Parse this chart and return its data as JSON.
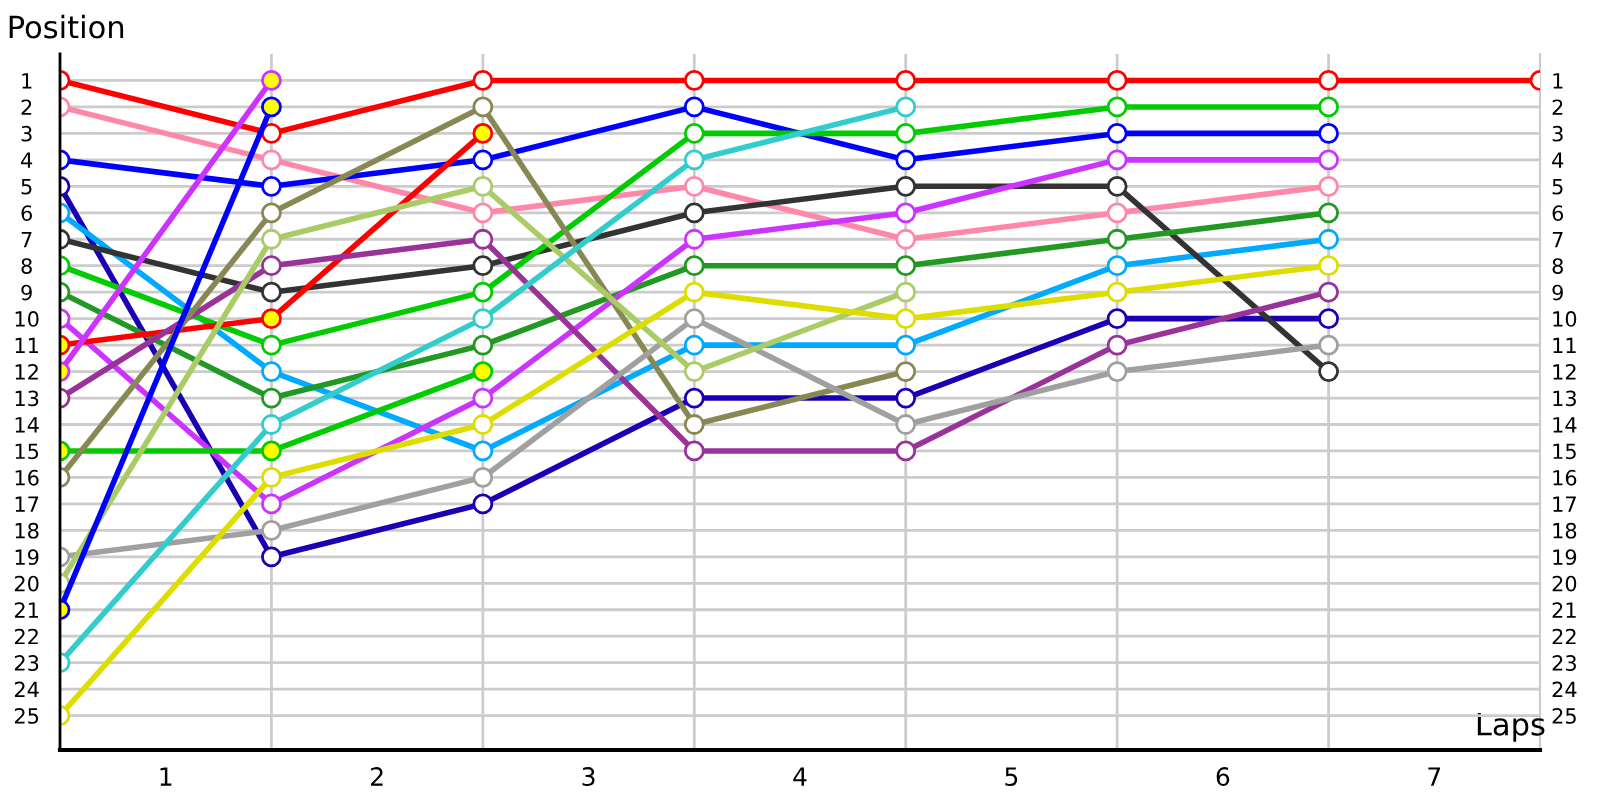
{
  "chart_data": {
    "type": "line",
    "xlabel": "Laps",
    "ylabel": "Position",
    "x": [
      0,
      1,
      2,
      3,
      4,
      5,
      6,
      7
    ],
    "xlim": [
      0,
      7
    ],
    "xticks": [
      {
        "value": 0.5,
        "label": "1"
      },
      {
        "value": 1,
        "label": null
      },
      {
        "value": 1.5,
        "label": "2"
      },
      {
        "value": 2,
        "label": null
      },
      {
        "value": 2.5,
        "label": "3"
      },
      {
        "value": 3,
        "label": null
      },
      {
        "value": 3.5,
        "label": "4"
      },
      {
        "value": 4,
        "label": null
      },
      {
        "value": 4.5,
        "label": "5"
      },
      {
        "value": 5,
        "label": null
      },
      {
        "value": 5.5,
        "label": "6"
      },
      {
        "value": 6,
        "label": null
      },
      {
        "value": 6.5,
        "label": "7"
      }
    ],
    "ylim": [
      26.3,
      0
    ],
    "yticks": [
      1,
      2,
      3,
      4,
      5,
      6,
      7,
      8,
      9,
      10,
      11,
      12,
      13,
      14,
      15,
      16,
      17,
      18,
      19,
      20,
      21,
      22,
      23,
      24,
      25
    ],
    "y2lim": [
      26.3,
      0
    ],
    "y2ticks": [
      1,
      2,
      3,
      4,
      5,
      6,
      7,
      8,
      9,
      10,
      11,
      12,
      13,
      14,
      15,
      16,
      17,
      18,
      19,
      20,
      21,
      22,
      23,
      24,
      25
    ],
    "grid": true,
    "marker": "circle",
    "line_style": "solid",
    "series": [
      {
        "color": "#ff0000",
        "values": [
          1,
          3,
          1,
          1,
          1,
          1,
          1,
          1
        ]
      },
      {
        "color": "#ff88aa",
        "values": [
          2,
          4,
          6,
          5,
          7,
          6,
          5,
          null
        ]
      },
      {
        "color": "#0000ff",
        "values": [
          4,
          5,
          4,
          2,
          4,
          3,
          3,
          null
        ]
      },
      {
        "color": "#1a00b3",
        "values": [
          5,
          19,
          17,
          13,
          13,
          10,
          10,
          null
        ]
      },
      {
        "color": "#00aaff",
        "values": [
          6,
          12,
          15,
          11,
          11,
          8,
          7,
          null
        ]
      },
      {
        "color": "#333333",
        "values": [
          7,
          9,
          8,
          6,
          5,
          5,
          12,
          null
        ]
      },
      {
        "color": "#00cc00",
        "values": [
          8,
          11,
          9,
          3,
          3,
          2,
          2,
          null
        ]
      },
      {
        "color": "#229922",
        "values": [
          9,
          13,
          11,
          8,
          8,
          7,
          6,
          null
        ]
      },
      {
        "color": "#cc33ff",
        "values": [
          10,
          17,
          13,
          7,
          6,
          4,
          4,
          null
        ]
      },
      {
        "color": "#ff0000",
        "values": [
          11,
          10,
          3,
          null,
          null,
          null,
          null,
          null
        ],
        "colors": [
          "#ffff00",
          "#ffff00",
          "#ffff00",
          null,
          null,
          null,
          null,
          null
        ]
      },
      {
        "color": "#cc33ff",
        "values": [
          12,
          1,
          null,
          null,
          null,
          null,
          null,
          null
        ],
        "colors": [
          "#ffff00",
          "#ffff00",
          null,
          null,
          null,
          null,
          null,
          null
        ]
      },
      {
        "color": "#993399",
        "values": [
          13,
          8,
          7,
          15,
          15,
          11,
          9,
          null
        ]
      },
      {
        "color": "#00cc00",
        "values": [
          15,
          15,
          12,
          null,
          null,
          null,
          null,
          null
        ],
        "colors": [
          "#ffff00",
          "#ffff00",
          "#ffff00",
          null,
          null,
          null,
          null,
          null
        ]
      },
      {
        "color": "#888855",
        "values": [
          16,
          6,
          2,
          14,
          12,
          null,
          null,
          null
        ]
      },
      {
        "color": "#a0a0a0",
        "values": [
          19,
          18,
          16,
          10,
          14,
          12,
          11,
          null
        ]
      },
      {
        "color": "#aacc66",
        "values": [
          20,
          7,
          5,
          12,
          9,
          null,
          null,
          null
        ]
      },
      {
        "color": "#0000ff",
        "values": [
          21,
          2,
          null,
          null,
          null,
          null,
          null,
          null
        ],
        "colors": [
          "#ffff00",
          "#ffff00",
          null,
          null,
          null,
          null,
          null,
          null
        ]
      },
      {
        "color": "#33cccc",
        "values": [
          23,
          14,
          10,
          4,
          2,
          null,
          null,
          null
        ]
      },
      {
        "color": "#dddd00",
        "values": [
          25,
          16,
          14,
          9,
          10,
          9,
          8,
          null
        ]
      }
    ]
  }
}
